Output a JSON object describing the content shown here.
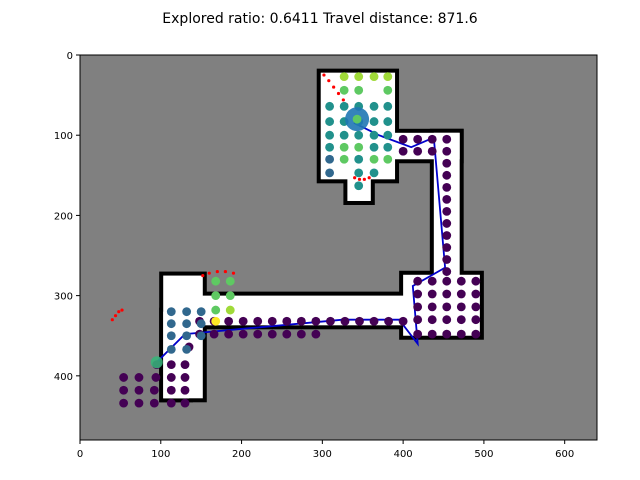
{
  "chart_data": {
    "type": "scatter",
    "title": "Explored ratio: 0.6411  Travel distance: 871.6",
    "xlabel": "",
    "ylabel": "",
    "xlim": [
      0,
      640
    ],
    "ylim": [
      480,
      0
    ],
    "x_ticks": [
      0,
      100,
      200,
      300,
      400,
      500,
      600
    ],
    "y_ticks": [
      0,
      100,
      200,
      300,
      400
    ],
    "grid": false,
    "colors": {
      "unknown": "#808080",
      "free": "#ffffff",
      "obstacle": "#000000",
      "frontier": "#ff0000",
      "path": "#0000cc",
      "robot": "#1f77b4",
      "start": "#35b779"
    },
    "free_regions": [
      {
        "x0": 298,
        "x1": 390,
        "y0": 22,
        "y1": 155
      },
      {
        "x0": 388,
        "x1": 470,
        "y0": 97,
        "y1": 130
      },
      {
        "x0": 438,
        "x1": 470,
        "y0": 97,
        "y1": 276
      },
      {
        "x0": 400,
        "x1": 495,
        "y0": 274,
        "y1": 350
      },
      {
        "x0": 135,
        "x1": 410,
        "y0": 300,
        "y1": 337
      },
      {
        "x0": 103,
        "x1": 152,
        "y0": 275,
        "y1": 428
      },
      {
        "x0": 103,
        "x1": 135,
        "y0": 320,
        "y1": 428
      },
      {
        "x0": 331,
        "x1": 360,
        "y0": 153,
        "y1": 182
      }
    ],
    "frontiers": [
      {
        "points": [
          [
            302,
            25
          ],
          [
            308,
            32
          ],
          [
            314,
            40
          ],
          [
            320,
            48
          ],
          [
            326,
            56
          ],
          [
            330,
            62
          ]
        ]
      },
      {
        "points": [
          [
            340,
            153
          ],
          [
            346,
            155
          ],
          [
            352,
            155
          ],
          [
            358,
            153
          ]
        ]
      },
      {
        "points": [
          [
            152,
            275
          ],
          [
            160,
            272
          ],
          [
            170,
            270
          ],
          [
            180,
            270
          ],
          [
            190,
            272
          ]
        ]
      },
      {
        "points": [
          [
            40,
            330
          ],
          [
            44,
            325
          ],
          [
            48,
            320
          ],
          [
            52,
            318
          ]
        ]
      }
    ],
    "path": [
      [
        95,
        383
      ],
      [
        130,
        348
      ],
      [
        325,
        330
      ],
      [
        395,
        330
      ],
      [
        418,
        360
      ],
      [
        412,
        288
      ],
      [
        452,
        265
      ],
      [
        438,
        103
      ],
      [
        410,
        115
      ],
      [
        370,
        100
      ],
      [
        340,
        85
      ],
      [
        342,
        80
      ]
    ],
    "robot": {
      "x": 343,
      "y": 80
    },
    "start": {
      "x": 95,
      "y": 383
    },
    "series": [
      {
        "name": "",
        "color": "#440154",
        "points": [
          [
            95,
            386
          ],
          [
            94,
            402
          ],
          [
            92,
            418
          ],
          [
            92,
            434
          ],
          [
            73,
            434
          ],
          [
            73,
            418
          ],
          [
            73,
            402
          ],
          [
            54,
            434
          ],
          [
            54,
            418
          ],
          [
            54,
            402
          ],
          [
            113,
            418
          ],
          [
            113,
            402
          ],
          [
            113,
            386
          ],
          [
            113,
            434
          ],
          [
            130,
            434
          ],
          [
            130,
            418
          ],
          [
            130,
            402
          ],
          [
            130,
            386
          ],
          [
            135,
            364
          ],
          [
            148,
            332
          ],
          [
            148,
            348
          ],
          [
            166,
            332
          ],
          [
            166,
            348
          ],
          [
            184,
            332
          ],
          [
            184,
            348
          ],
          [
            202,
            332
          ],
          [
            202,
            348
          ],
          [
            220,
            332
          ],
          [
            220,
            348
          ],
          [
            238,
            332
          ],
          [
            238,
            348
          ],
          [
            256,
            332
          ],
          [
            256,
            348
          ],
          [
            274,
            332
          ],
          [
            274,
            348
          ],
          [
            292,
            332
          ],
          [
            292,
            348
          ],
          [
            310,
            332
          ],
          [
            328,
            332
          ],
          [
            346,
            332
          ],
          [
            364,
            332
          ],
          [
            382,
            332
          ],
          [
            400,
            332
          ],
          [
            418,
            282
          ],
          [
            418,
            298
          ],
          [
            418,
            314
          ],
          [
            418,
            330
          ],
          [
            418,
            348
          ],
          [
            436,
            282
          ],
          [
            436,
            298
          ],
          [
            436,
            314
          ],
          [
            436,
            330
          ],
          [
            436,
            348
          ],
          [
            454,
            282
          ],
          [
            454,
            298
          ],
          [
            454,
            314
          ],
          [
            454,
            330
          ],
          [
            454,
            348
          ],
          [
            472,
            282
          ],
          [
            472,
            298
          ],
          [
            472,
            314
          ],
          [
            472,
            330
          ],
          [
            472,
            348
          ],
          [
            490,
            282
          ],
          [
            490,
            298
          ],
          [
            490,
            314
          ],
          [
            490,
            330
          ],
          [
            490,
            348
          ],
          [
            436,
            105
          ],
          [
            454,
            105
          ],
          [
            454,
            120
          ],
          [
            454,
            135
          ],
          [
            454,
            150
          ],
          [
            454,
            165
          ],
          [
            454,
            180
          ],
          [
            454,
            195
          ],
          [
            454,
            210
          ],
          [
            454,
            225
          ],
          [
            454,
            240
          ],
          [
            454,
            255
          ],
          [
            454,
            270
          ],
          [
            400,
            105
          ],
          [
            400,
            120
          ],
          [
            418,
            105
          ],
          [
            418,
            120
          ],
          [
            436,
            120
          ]
        ]
      },
      {
        "name": "",
        "color": "#31688e",
        "points": [
          [
            113,
            320
          ],
          [
            113,
            335
          ],
          [
            113,
            350
          ],
          [
            132,
            320
          ],
          [
            132,
            335
          ],
          [
            132,
            350
          ],
          [
            150,
            320
          ],
          [
            150,
            335
          ],
          [
            150,
            350
          ],
          [
            113,
            367
          ],
          [
            132,
            367
          ],
          [
            309,
            147
          ],
          [
            309,
            130
          ]
        ]
      },
      {
        "name": "",
        "color": "#21918c",
        "points": [
          [
            309,
            64
          ],
          [
            309,
            83
          ],
          [
            309,
            100
          ],
          [
            309,
            115
          ],
          [
            327,
            64
          ],
          [
            327,
            83
          ],
          [
            345,
            64
          ],
          [
            345,
            83
          ],
          [
            364,
            64
          ],
          [
            364,
            83
          ],
          [
            364,
            100
          ],
          [
            364,
            115
          ],
          [
            364,
            147
          ],
          [
            381,
            64
          ],
          [
            381,
            83
          ],
          [
            381,
            100
          ],
          [
            381,
            115
          ],
          [
            327,
            100
          ],
          [
            345,
            100
          ],
          [
            345,
            130
          ],
          [
            345,
            147
          ],
          [
            345,
            163
          ]
        ]
      },
      {
        "name": "",
        "color": "#5ec962",
        "points": [
          [
            327,
            44
          ],
          [
            345,
            44
          ],
          [
            381,
            44
          ],
          [
            327,
            115
          ],
          [
            327,
            130
          ],
          [
            345,
            115
          ],
          [
            364,
            130
          ],
          [
            381,
            130
          ],
          [
            168,
            300
          ],
          [
            186,
            300
          ],
          [
            168,
            282
          ],
          [
            186,
            282
          ],
          [
            168,
            318
          ]
        ]
      },
      {
        "name": "",
        "color": "#a0da39",
        "points": [
          [
            327,
            27
          ],
          [
            345,
            27
          ],
          [
            364,
            27
          ],
          [
            381,
            27
          ],
          [
            186,
            318
          ]
        ]
      },
      {
        "name": "",
        "color": "#fde725",
        "points": [
          [
            168,
            332
          ]
        ]
      }
    ]
  }
}
